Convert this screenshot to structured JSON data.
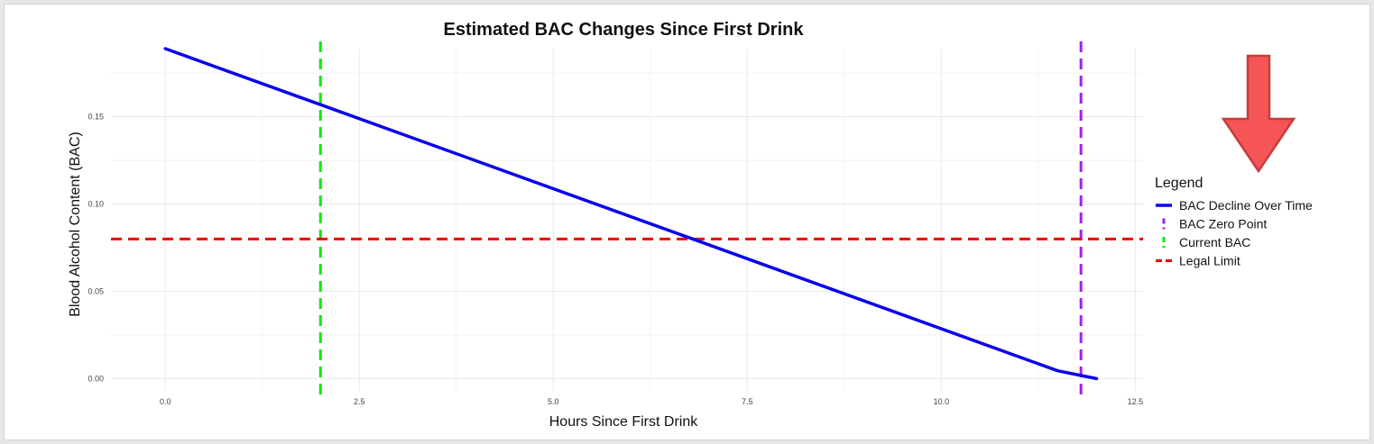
{
  "colors": {
    "bac_line": "#0a00ee",
    "current_bac": "#00ee00",
    "zero_point": "#a020f0",
    "legal_limit": "#ee0000",
    "grid": "#ebebeb",
    "arrow_fill": "#f55555",
    "arrow_stroke": "#c43d3d"
  },
  "icons": {
    "overlay_arrow": "down-arrow-icon"
  },
  "chart_data": {
    "type": "line",
    "title": "Estimated BAC Changes Since First Drink",
    "xlabel": "Hours Since First Drink",
    "ylabel": "Blood Alcohol Content (BAC)",
    "xlim": [
      -0.7,
      12.6
    ],
    "ylim": [
      -0.007,
      0.189
    ],
    "x_ticks": [
      0.0,
      2.5,
      5.0,
      7.5,
      10.0,
      12.5
    ],
    "x_tick_labels": [
      "0.0",
      "2.5",
      "5.0",
      "7.5",
      "10.0",
      "12.5"
    ],
    "y_ticks": [
      0.0,
      0.05,
      0.1,
      0.15
    ],
    "y_tick_labels": [
      "0.00",
      "0.05",
      "0.10",
      "0.15"
    ],
    "grid": true,
    "legend_position": "right",
    "legend_title": "Legend",
    "series": [
      {
        "name": "BAC Decline Over Time",
        "style": "solid",
        "x": [
          0.0,
          11.5,
          12.0
        ],
        "y": [
          0.189,
          0.0045,
          0.0
        ]
      }
    ],
    "reference_lines": [
      {
        "name": "BAC Zero Point",
        "orientation": "vertical",
        "value": 11.8,
        "style": "dashed"
      },
      {
        "name": "Current BAC",
        "orientation": "vertical",
        "value": 2.0,
        "style": "dashed"
      },
      {
        "name": "Legal Limit",
        "orientation": "horizontal",
        "value": 0.08,
        "style": "dashed"
      }
    ]
  }
}
